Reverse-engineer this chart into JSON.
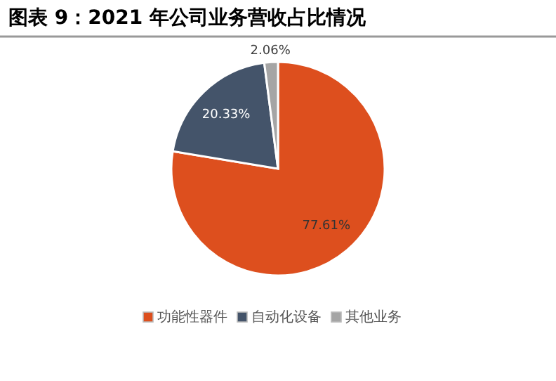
{
  "chart_data": {
    "type": "pie",
    "title": "图表 9：2021 年公司业务营收占比情况",
    "categories": [
      "功能性器件",
      "自动化设备",
      "其他业务"
    ],
    "values": [
      77.61,
      20.33,
      2.06
    ],
    "value_labels": [
      "77.61%",
      "20.33%",
      "2.06%"
    ],
    "colors": [
      "#dd4f1e",
      "#44546a",
      "#a5a5a5"
    ],
    "legend": "bottom"
  }
}
